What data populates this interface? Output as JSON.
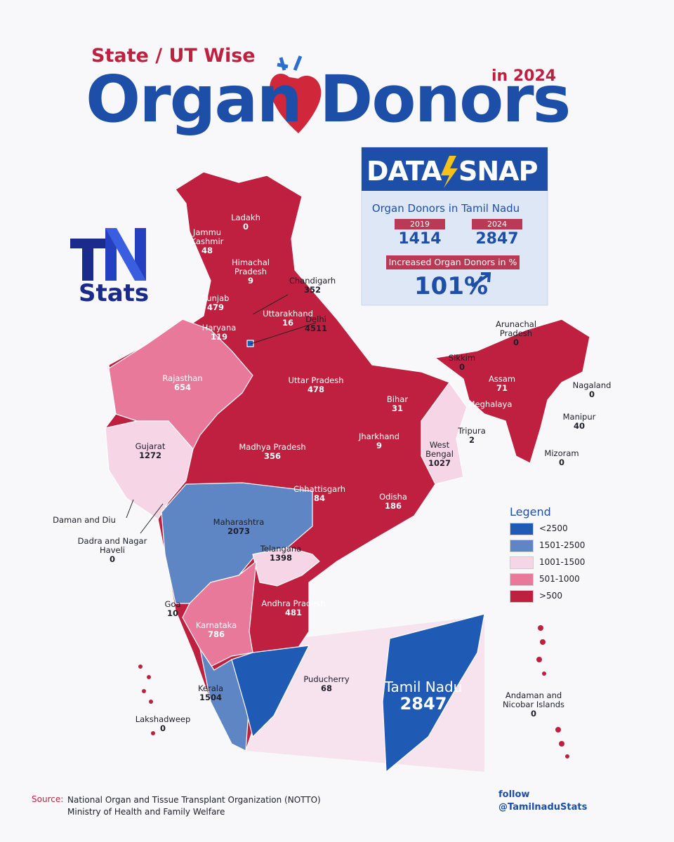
{
  "header": {
    "subtitle": "State / UT Wise",
    "title_left": "Organ",
    "title_right": "Donors",
    "year": "in 2024"
  },
  "logo": {
    "mark": "TN",
    "text": "Stats"
  },
  "datasnap": {
    "brand_left": "DATA",
    "brand_right": "SNAP",
    "heading": "Organ Donors in Tamil Nadu",
    "years": [
      {
        "label": "2019",
        "value": 1414
      },
      {
        "label": "2024",
        "value": 2847
      }
    ],
    "increase_label": "Increased Organ Donors in %",
    "increase_value": "101%"
  },
  "regions": [
    {
      "name": "Ladakh",
      "value": 0
    },
    {
      "name": "Jammu Kashmir",
      "value": 48
    },
    {
      "name": "Himachal Pradesh",
      "value": 9
    },
    {
      "name": "Chandigarh",
      "value": 352
    },
    {
      "name": "Punjab",
      "value": 479
    },
    {
      "name": "Uttarakhand",
      "value": 16
    },
    {
      "name": "Haryana",
      "value": 119
    },
    {
      "name": "Delhi",
      "value": 4511
    },
    {
      "name": "Rajasthan",
      "value": 654
    },
    {
      "name": "Uttar Pradesh",
      "value": 478
    },
    {
      "name": "Arunachal Pradesh",
      "value": 0
    },
    {
      "name": "Sikkim",
      "value": 0
    },
    {
      "name": "Assam",
      "value": 71
    },
    {
      "name": "Nagaland",
      "value": 0
    },
    {
      "name": "Meghalaya"
    },
    {
      "name": "Manipur",
      "value": 40
    },
    {
      "name": "Tripura",
      "value": 2
    },
    {
      "name": "Mizoram",
      "value": 0
    },
    {
      "name": "Bihar",
      "value": 31
    },
    {
      "name": "Jharkhand",
      "value": 9
    },
    {
      "name": "West Bengal",
      "value": 1027
    },
    {
      "name": "Gujarat",
      "value": 1272
    },
    {
      "name": "Madhya Pradesh",
      "value": 356
    },
    {
      "name": "Chhattisgarh",
      "value": 84
    },
    {
      "name": "Odisha",
      "value": 186
    },
    {
      "name": "Daman and Diu"
    },
    {
      "name": "Dadra and Nagar Haveli",
      "value": 0
    },
    {
      "name": "Maharashtra",
      "value": 2073
    },
    {
      "name": "Telangana",
      "value": 1398
    },
    {
      "name": "Goa",
      "value": 10
    },
    {
      "name": "Karnataka",
      "value": 786
    },
    {
      "name": "Andhra Pradesh",
      "value": 481
    },
    {
      "name": "Kerala",
      "value": 1504
    },
    {
      "name": "Puducherry",
      "value": 68
    },
    {
      "name": "Tamil Nadu",
      "value": 2847
    },
    {
      "name": "Lakshadweep",
      "value": 0
    },
    {
      "name": "Andaman and Nicobar Islands",
      "value": 0
    }
  ],
  "legend": {
    "title": "Legend",
    "items": [
      {
        "label": "<2500",
        "color": "#1f5bb5"
      },
      {
        "label": "1501-2500",
        "color": "#5f86c4"
      },
      {
        "label": "1001-1500",
        "color": "#f6d6e6"
      },
      {
        "label": "501-1000",
        "color": "#e8799a"
      },
      {
        "label": ">500",
        "color": "#c0203f"
      }
    ]
  },
  "source": {
    "label": "Source:",
    "lines": [
      "National Organ and Tissue Transplant Organization (NOTTO)",
      "Ministry of Health and Family Welfare"
    ]
  },
  "follow": {
    "label": "follow",
    "handle": "@TamilnaduStats"
  }
}
